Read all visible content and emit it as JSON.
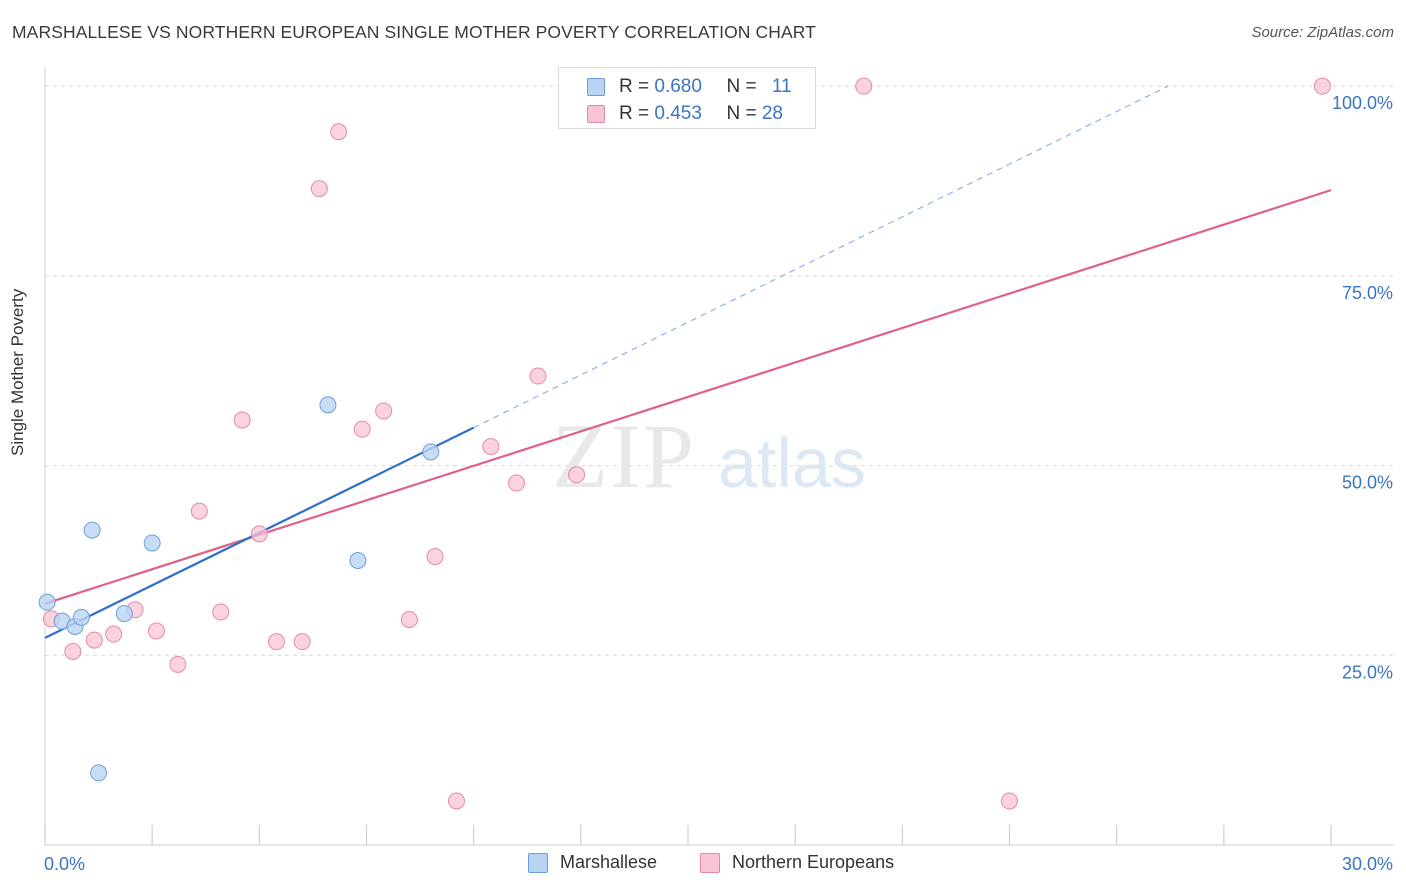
{
  "header": {
    "title": "MARSHALLESE VS NORTHERN EUROPEAN SINGLE MOTHER POVERTY CORRELATION CHART",
    "source": "Source: ZipAtlas.com"
  },
  "watermark": {
    "zip": "ZIP",
    "atlas": "atlas"
  },
  "legend_top": [
    {
      "r_label": "R = ",
      "r_value": "0.680",
      "n_label": "N = ",
      "n_value": "11"
    },
    {
      "r_label": "R = ",
      "r_value": "0.453",
      "n_label": "N = ",
      "n_value": "28"
    }
  ],
  "colors": {
    "blue_fill": "#b9d3f2",
    "blue_stroke": "#6f9fd8",
    "blue_line": "#2f6fcc",
    "pink_fill": "#f8c4d4",
    "pink_stroke": "#e48aa8",
    "pink_line": "#e0608a",
    "grid": "#d9d9d9",
    "axis_text": "#3a74c4"
  },
  "chart_data": {
    "type": "scatter",
    "title": "MARSHALLESE VS NORTHERN EUROPEAN SINGLE MOTHER POVERTY CORRELATION CHART",
    "xlabel": "",
    "ylabel": "Single Mother Poverty",
    "xlim": [
      0,
      30
    ],
    "ylim": [
      0,
      102
    ],
    "x_tick_labels": [
      "0.0%",
      "30.0%"
    ],
    "y_ticks": [
      25,
      50,
      75,
      100
    ],
    "y_tick_labels": [
      "25.0%",
      "50.0%",
      "75.0%",
      "100.0%"
    ],
    "grid": true,
    "legend_position": "top-center",
    "series": [
      {
        "name": "Marshallese",
        "color": "#b9d3f2",
        "r": "0.680",
        "n": "11",
        "points": [
          {
            "x": 0.05,
            "y": 32.0
          },
          {
            "x": 0.4,
            "y": 29.5
          },
          {
            "x": 0.7,
            "y": 28.8
          },
          {
            "x": 0.85,
            "y": 30.0
          },
          {
            "x": 1.1,
            "y": 41.5
          },
          {
            "x": 1.25,
            "y": 9.5
          },
          {
            "x": 1.85,
            "y": 30.5
          },
          {
            "x": 2.5,
            "y": 39.8
          },
          {
            "x": 6.6,
            "y": 58.0
          },
          {
            "x": 7.3,
            "y": 37.5
          },
          {
            "x": 9.0,
            "y": 51.8
          }
        ],
        "trend": {
          "x0": 0.0,
          "y0": 27.3,
          "x1": 10.0,
          "y1": 55.0
        },
        "trend_dashed": {
          "x0": 10.0,
          "y0": 55.0,
          "x1": 26.2,
          "y1": 100.0
        }
      },
      {
        "name": "Northern Europeans",
        "color": "#f8c4d4",
        "r": "0.453",
        "n": "28",
        "points": [
          {
            "x": 0.15,
            "y": 29.8
          },
          {
            "x": 0.65,
            "y": 25.5
          },
          {
            "x": 1.15,
            "y": 27.0
          },
          {
            "x": 1.6,
            "y": 27.8
          },
          {
            "x": 2.1,
            "y": 31.0
          },
          {
            "x": 2.6,
            "y": 28.2
          },
          {
            "x": 3.1,
            "y": 23.8
          },
          {
            "x": 3.6,
            "y": 44.0
          },
          {
            "x": 4.1,
            "y": 30.7
          },
          {
            "x": 4.6,
            "y": 56.0
          },
          {
            "x": 5.0,
            "y": 41.0
          },
          {
            "x": 5.4,
            "y": 26.8
          },
          {
            "x": 6.0,
            "y": 26.8
          },
          {
            "x": 6.4,
            "y": 86.5
          },
          {
            "x": 6.85,
            "y": 94.0
          },
          {
            "x": 7.4,
            "y": 54.8
          },
          {
            "x": 7.9,
            "y": 57.2
          },
          {
            "x": 8.5,
            "y": 29.7
          },
          {
            "x": 9.1,
            "y": 38.0
          },
          {
            "x": 9.6,
            "y": 5.8
          },
          {
            "x": 10.4,
            "y": 52.5
          },
          {
            "x": 11.0,
            "y": 47.7
          },
          {
            "x": 11.5,
            "y": 61.8
          },
          {
            "x": 12.4,
            "y": 48.8
          },
          {
            "x": 13.7,
            "y": 100.0
          },
          {
            "x": 19.1,
            "y": 100.0
          },
          {
            "x": 22.5,
            "y": 5.8
          },
          {
            "x": 29.8,
            "y": 100.0
          }
        ],
        "trend": {
          "x0": 0.0,
          "y0": 31.8,
          "x1": 30.0,
          "y1": 86.3
        }
      }
    ]
  },
  "legend_bottom": [
    {
      "label": "Marshallese"
    },
    {
      "label": "Northern Europeans"
    }
  ]
}
